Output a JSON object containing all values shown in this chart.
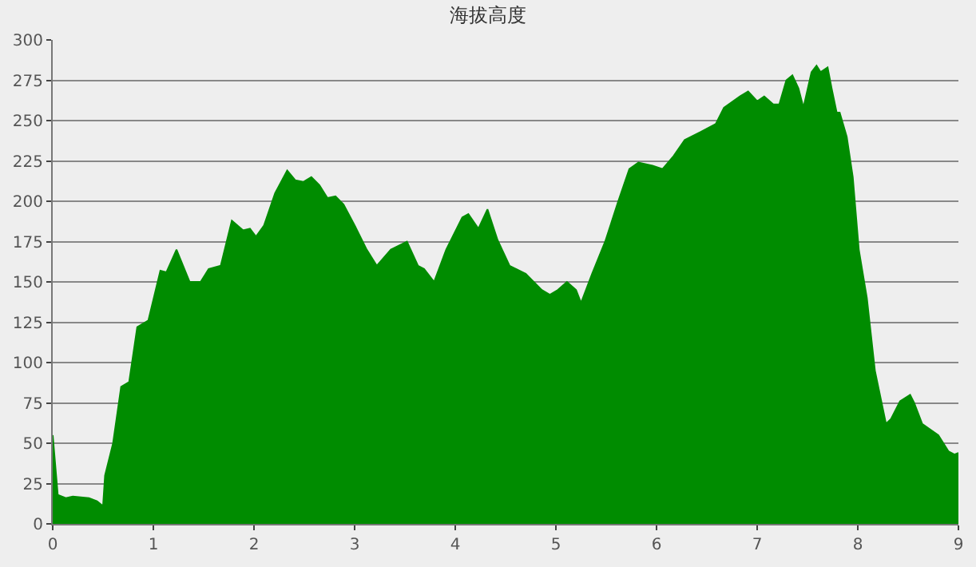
{
  "chart_data": {
    "type": "area",
    "title": "海拔高度",
    "x": [
      0,
      0.05,
      0.13,
      0.2,
      0.36,
      0.44,
      0.5,
      0.52,
      0.6,
      0.68,
      0.76,
      0.84,
      0.95,
      1.07,
      1.13,
      1.23,
      1.36,
      1.47,
      1.55,
      1.67,
      1.78,
      1.89,
      1.96,
      2.02,
      2.1,
      2.21,
      2.33,
      2.41,
      2.49,
      2.57,
      2.65,
      2.73,
      2.81,
      2.89,
      3.0,
      3.12,
      3.22,
      3.36,
      3.52,
      3.63,
      3.69,
      3.79,
      3.91,
      4.07,
      4.13,
      4.23,
      4.32,
      4.42,
      4.54,
      4.7,
      4.86,
      4.94,
      5.02,
      5.11,
      5.2,
      5.25,
      5.36,
      5.49,
      5.62,
      5.73,
      5.82,
      5.96,
      6.06,
      6.17,
      6.28,
      6.44,
      6.59,
      6.67,
      6.83,
      6.91,
      7.0,
      7.07,
      7.16,
      7.22,
      7.29,
      7.35,
      7.41,
      7.46,
      7.54,
      7.59,
      7.63,
      7.7,
      7.74,
      7.79,
      7.82,
      7.89,
      7.95,
      8.01,
      8.09,
      8.17,
      8.28,
      8.33,
      8.42,
      8.52,
      8.56,
      8.64,
      8.8,
      8.9,
      8.96,
      9.0
    ],
    "series": [
      {
        "color": "#008c00",
        "values": [
          55,
          18,
          16,
          17,
          16,
          14,
          11,
          30,
          50,
          85,
          88,
          122,
          126,
          157,
          156,
          170,
          150,
          150,
          158,
          160,
          188,
          182,
          183,
          178,
          185,
          205,
          219,
          213,
          212,
          215,
          210,
          202,
          203,
          198,
          185,
          170,
          160,
          170,
          175,
          160,
          158,
          150,
          170,
          190,
          192,
          183,
          195,
          176,
          160,
          155,
          145,
          142,
          145,
          150,
          145,
          137,
          155,
          175,
          200,
          220,
          224,
          222,
          220,
          228,
          238,
          243,
          248,
          258,
          265,
          268,
          262,
          265,
          260,
          260,
          275,
          278,
          270,
          258,
          280,
          284,
          280,
          283,
          270,
          255,
          255,
          240,
          215,
          170,
          140,
          95,
          62,
          65,
          76,
          80,
          75,
          62,
          55,
          45,
          43,
          44
        ]
      }
    ],
    "xlim": [
      0,
      9
    ],
    "xticks": [
      0,
      1,
      2,
      3,
      4,
      5,
      6,
      7,
      8,
      9
    ],
    "ylim": [
      0,
      300
    ],
    "yticks": [
      0,
      25,
      50,
      75,
      100,
      125,
      150,
      175,
      200,
      225,
      250,
      275,
      300
    ],
    "grid": "y",
    "marker": "none"
  }
}
